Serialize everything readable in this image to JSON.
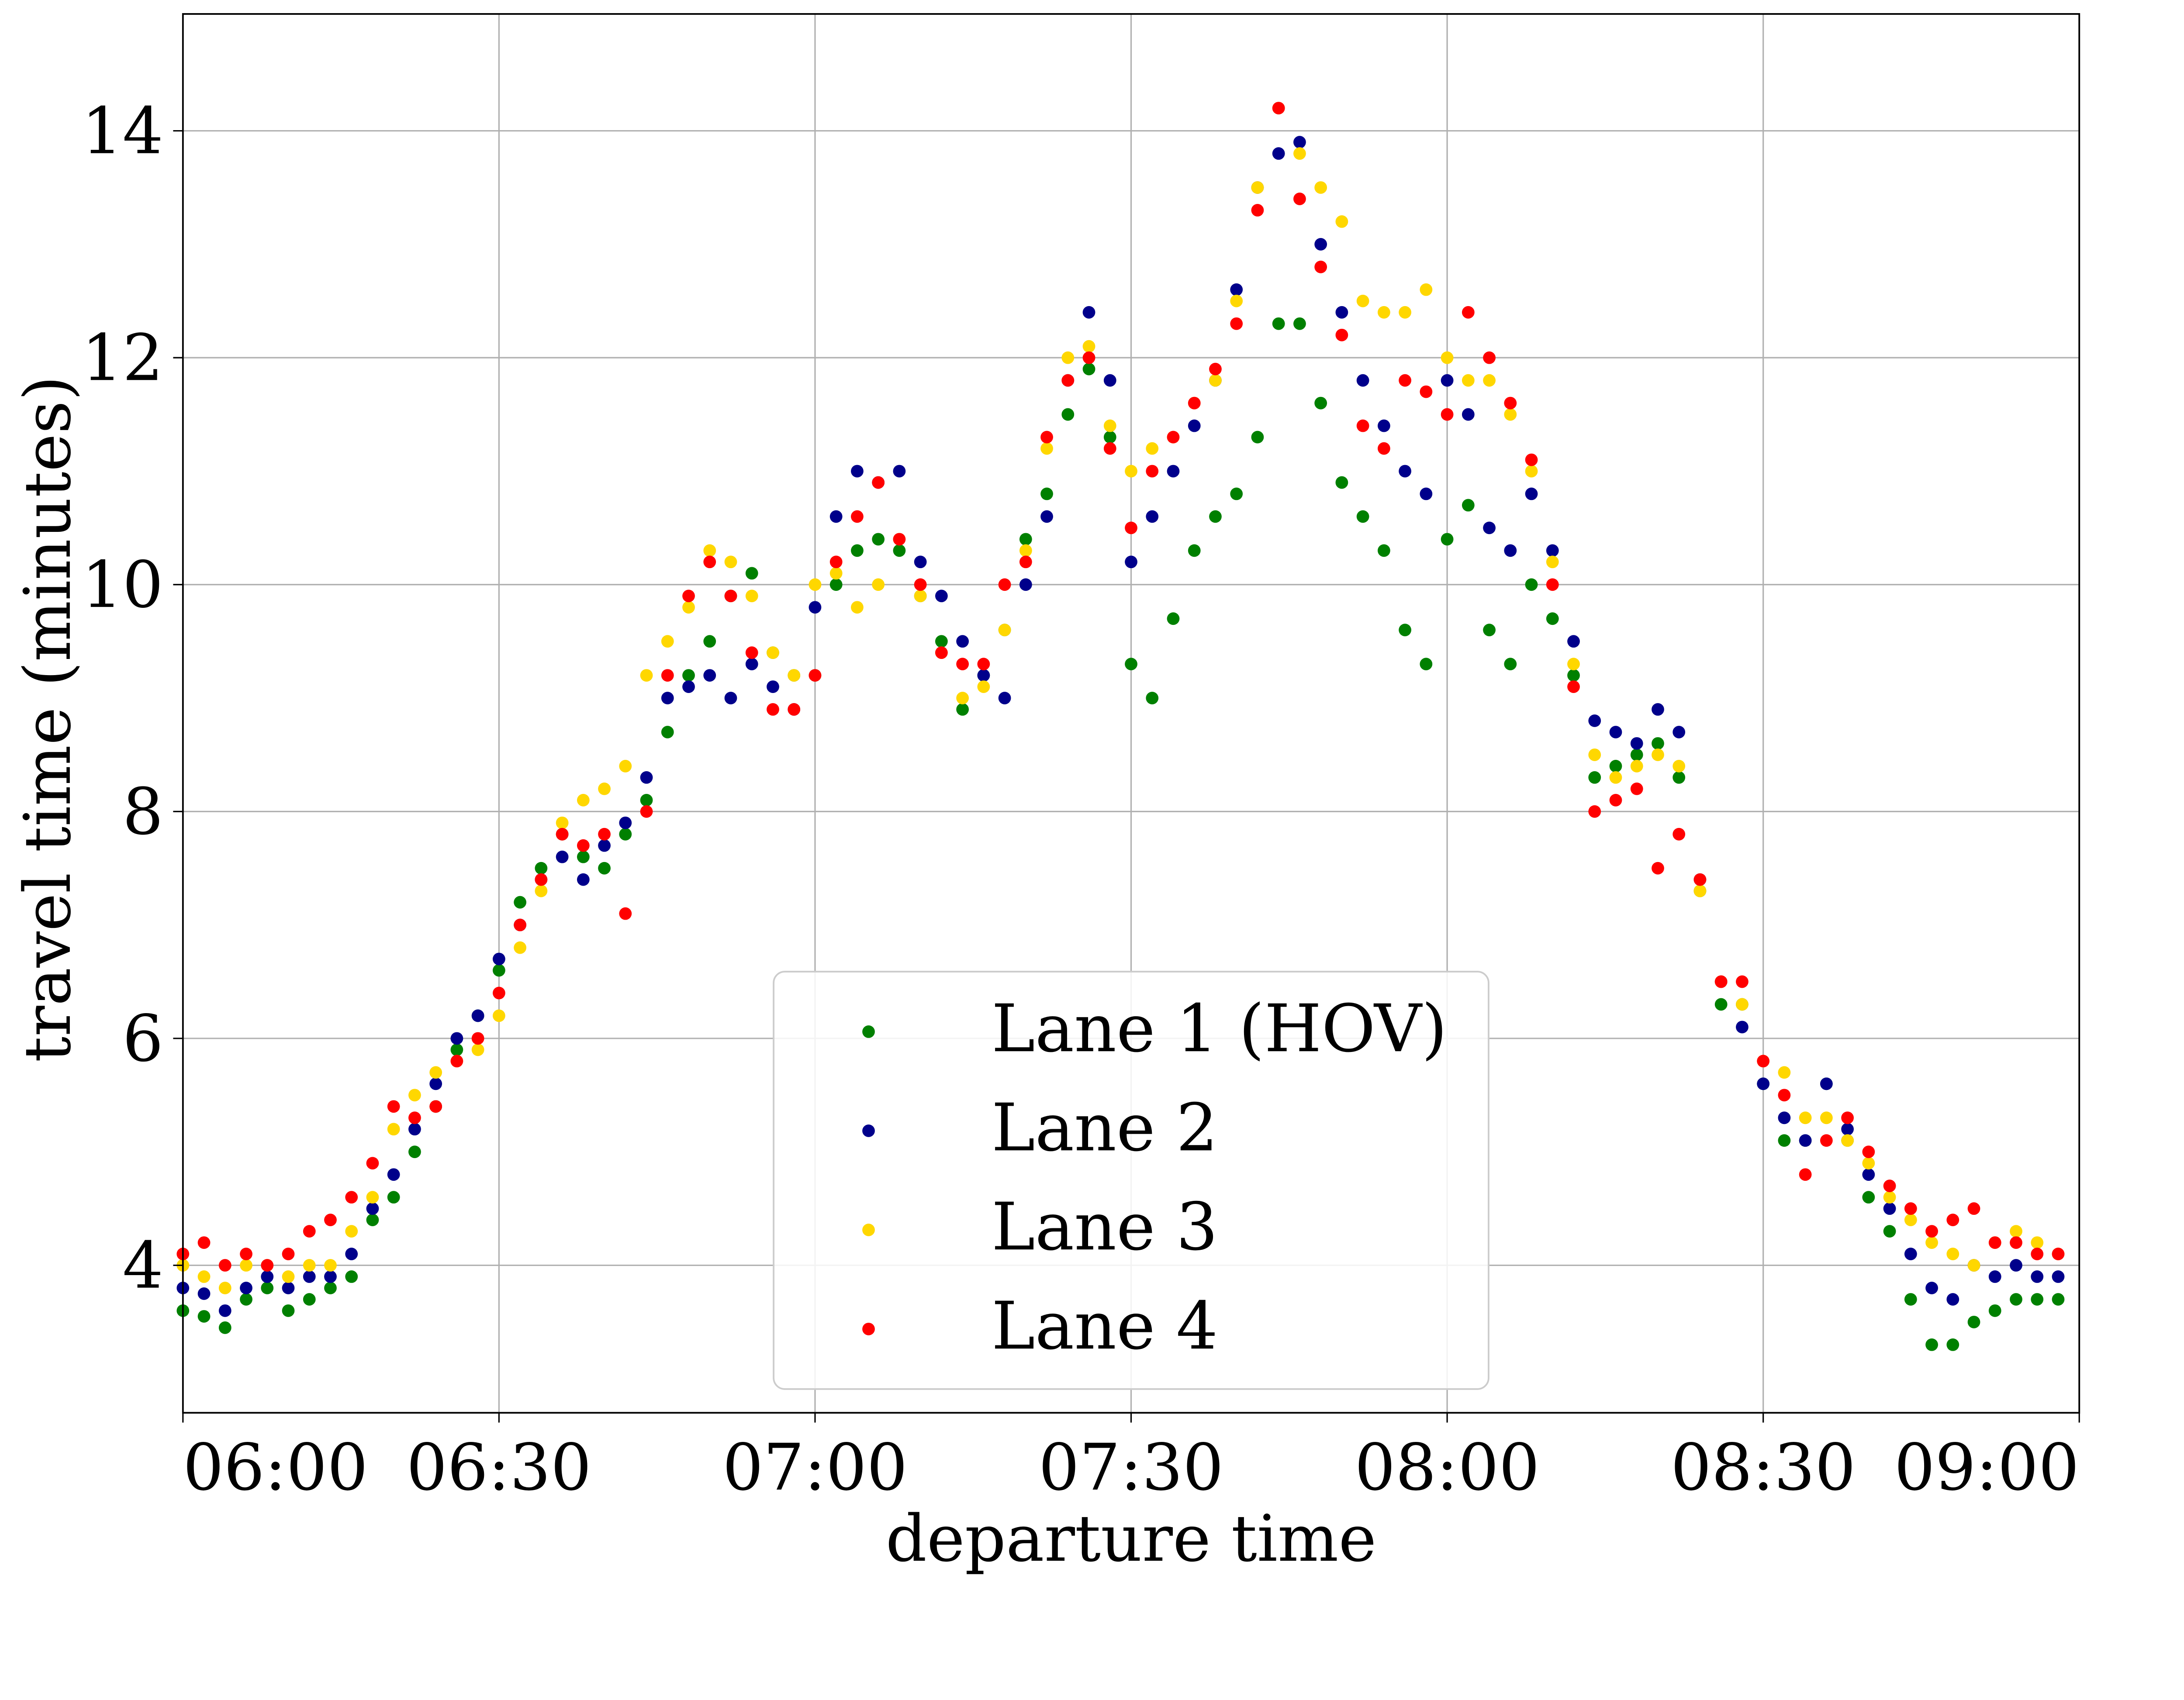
{
  "chart_data": {
    "type": "scatter",
    "title": "",
    "xlabel": "departure time",
    "ylabel": "travel time (minutes)",
    "xlim": [
      "06:00",
      "09:00"
    ],
    "ylim": [
      2.7,
      15.03
    ],
    "xticks": [
      "06:00",
      "06:30",
      "07:00",
      "07:30",
      "08:00",
      "08:30",
      "09:00"
    ],
    "yticks": [
      "4",
      "6",
      "8",
      "10",
      "12",
      "14"
    ],
    "grid": true,
    "legend_placement": "lower-center",
    "x": [
      "06:00",
      "06:02",
      "06:04",
      "06:06",
      "06:08",
      "06:10",
      "06:12",
      "06:14",
      "06:16",
      "06:18",
      "06:20",
      "06:22",
      "06:24",
      "06:26",
      "06:28",
      "06:30",
      "06:32",
      "06:34",
      "06:36",
      "06:38",
      "06:40",
      "06:42",
      "06:44",
      "06:46",
      "06:48",
      "06:50",
      "06:52",
      "06:54",
      "06:56",
      "06:58",
      "07:00",
      "07:02",
      "07:04",
      "07:06",
      "07:08",
      "07:10",
      "07:12",
      "07:14",
      "07:16",
      "07:18",
      "07:20",
      "07:22",
      "07:24",
      "07:26",
      "07:28",
      "07:30",
      "07:32",
      "07:34",
      "07:36",
      "07:38",
      "07:40",
      "07:42",
      "07:44",
      "07:46",
      "07:48",
      "07:50",
      "07:52",
      "07:54",
      "07:56",
      "07:58",
      "08:00",
      "08:02",
      "08:04",
      "08:06",
      "08:08",
      "08:10",
      "08:12",
      "08:14",
      "08:16",
      "08:18",
      "08:20",
      "08:22",
      "08:24",
      "08:26",
      "08:28",
      "08:30",
      "08:32",
      "08:34",
      "08:36",
      "08:38",
      "08:40",
      "08:42",
      "08:44",
      "08:46",
      "08:48",
      "08:50",
      "08:52",
      "08:54",
      "08:56",
      "08:58"
    ],
    "series": [
      {
        "name": "Lane 1 (HOV)",
        "color": "#008000",
        "values": [
          3.6,
          3.55,
          3.45,
          3.7,
          3.8,
          3.6,
          3.7,
          3.8,
          3.9,
          4.4,
          4.6,
          5.0,
          5.4,
          5.9,
          6.2,
          6.6,
          7.2,
          7.5,
          7.8,
          7.6,
          7.5,
          7.8,
          8.1,
          8.7,
          9.2,
          9.5,
          9.9,
          10.1,
          9.4,
          9.2,
          9.2,
          10.0,
          10.3,
          10.4,
          10.3,
          9.9,
          9.5,
          8.9,
          9.2,
          9.6,
          10.4,
          10.8,
          11.5,
          11.9,
          11.3,
          9.3,
          9.0,
          9.7,
          10.3,
          10.6,
          10.8,
          11.3,
          12.3,
          12.3,
          11.6,
          10.9,
          10.6,
          10.3,
          9.6,
          9.3,
          10.4,
          10.7,
          9.6,
          9.3,
          10.0,
          9.7,
          9.2,
          8.3,
          8.4,
          8.5,
          8.6,
          8.3,
          7.3,
          6.3,
          6.3,
          5.6,
          5.1,
          5.1,
          5.6,
          5.1,
          4.6,
          4.3,
          3.7,
          3.3,
          3.3,
          3.5,
          3.6,
          3.7,
          3.7,
          3.7
        ]
      },
      {
        "name": "Lane 2",
        "color": "#00008b",
        "values": [
          3.8,
          3.75,
          3.6,
          3.8,
          3.9,
          3.8,
          3.9,
          3.9,
          4.1,
          4.5,
          4.8,
          5.2,
          5.6,
          6.0,
          6.2,
          6.7,
          7.0,
          7.4,
          7.6,
          7.4,
          7.7,
          7.9,
          8.3,
          9.0,
          9.1,
          9.2,
          9.0,
          9.3,
          9.1,
          8.9,
          9.8,
          10.6,
          11.0,
          10.9,
          11.0,
          10.2,
          9.9,
          9.5,
          9.2,
          9.0,
          10.0,
          10.6,
          11.8,
          12.4,
          11.8,
          10.2,
          10.6,
          11.0,
          11.4,
          11.8,
          12.6,
          13.5,
          13.8,
          13.9,
          13.0,
          12.4,
          11.8,
          11.4,
          11.0,
          10.8,
          11.8,
          11.5,
          10.5,
          10.3,
          10.8,
          10.3,
          9.5,
          8.8,
          8.7,
          8.6,
          8.9,
          8.7,
          7.4,
          6.5,
          6.1,
          5.6,
          5.3,
          5.1,
          5.6,
          5.2,
          4.8,
          4.5,
          4.1,
          3.8,
          3.7,
          4.0,
          3.9,
          4.0,
          3.9,
          3.9
        ]
      },
      {
        "name": "Lane 3",
        "color": "#ffd700",
        "values": [
          4.0,
          3.9,
          3.8,
          4.0,
          4.0,
          3.9,
          4.0,
          4.0,
          4.3,
          4.6,
          5.2,
          5.5,
          5.7,
          5.8,
          5.9,
          6.2,
          6.8,
          7.3,
          7.9,
          8.1,
          8.2,
          8.4,
          9.2,
          9.5,
          9.8,
          10.3,
          10.2,
          9.9,
          9.4,
          9.2,
          10.0,
          10.1,
          9.8,
          10.0,
          10.4,
          9.9,
          9.4,
          9.0,
          9.1,
          9.6,
          10.3,
          11.2,
          12.0,
          12.1,
          11.4,
          11.0,
          11.2,
          11.3,
          11.6,
          11.8,
          12.5,
          13.5,
          14.2,
          13.8,
          13.5,
          13.2,
          12.5,
          12.4,
          12.4,
          12.6,
          12.0,
          11.8,
          11.8,
          11.5,
          11.0,
          10.2,
          9.3,
          8.5,
          8.3,
          8.4,
          8.5,
          8.4,
          7.3,
          6.5,
          6.3,
          5.8,
          5.7,
          5.3,
          5.3,
          5.1,
          4.9,
          4.6,
          4.4,
          4.2,
          4.1,
          4.0,
          4.2,
          4.3,
          4.2,
          4.1
        ]
      },
      {
        "name": "Lane 4",
        "color": "#ff0000",
        "values": [
          4.1,
          4.2,
          4.0,
          4.1,
          4.0,
          4.1,
          4.3,
          4.4,
          4.6,
          4.9,
          5.4,
          5.3,
          5.4,
          5.8,
          6.0,
          6.4,
          7.0,
          7.4,
          7.8,
          7.7,
          7.8,
          7.1,
          8.0,
          9.2,
          9.9,
          10.2,
          9.9,
          9.4,
          8.9,
          8.9,
          9.2,
          10.2,
          10.6,
          10.9,
          10.4,
          10.0,
          9.4,
          9.3,
          9.3,
          10.0,
          10.2,
          11.3,
          11.8,
          12.0,
          11.2,
          10.5,
          11.0,
          11.3,
          11.6,
          11.9,
          12.3,
          13.3,
          14.2,
          13.4,
          12.8,
          12.2,
          11.4,
          11.2,
          11.8,
          11.7,
          11.5,
          12.4,
          12.0,
          11.6,
          11.1,
          10.0,
          9.1,
          8.0,
          8.1,
          8.2,
          7.5,
          7.8,
          7.4,
          6.5,
          6.5,
          5.8,
          5.5,
          4.8,
          5.1,
          5.3,
          5.0,
          4.7,
          4.5,
          4.3,
          4.4,
          4.5,
          4.2,
          4.2,
          4.1,
          4.1
        ]
      }
    ]
  }
}
